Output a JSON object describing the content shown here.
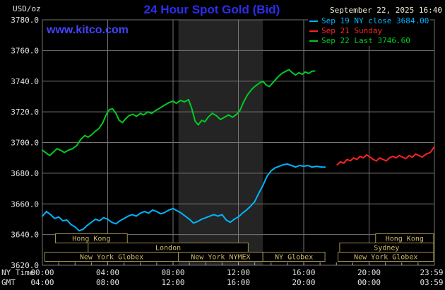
{
  "header": {
    "unit_label": "USD/oz",
    "title": "24 Hour Spot Gold (Bid)",
    "datetime": "September 22, 2025 16:40",
    "watermark": "www.kitco.com"
  },
  "legend": {
    "items": [
      {
        "label": "Sep 19 NY close 3684.00",
        "color": "#00b4ff"
      },
      {
        "label": "Sep 21 Sunday",
        "color": "#ff2222"
      },
      {
        "label": "Sep 22 Last 3746.60",
        "color": "#00cc22"
      }
    ]
  },
  "axes": {
    "y_ticks": [
      "3780.0",
      "3760.0",
      "3740.0",
      "3720.0",
      "3700.0",
      "3680.0",
      "3660.0",
      "3640.0",
      "3620.0"
    ],
    "x_ny_label": "NY Time",
    "x_gmt_label": "GMT",
    "x_ny_ticks": [
      "00:00",
      "04:00",
      "08:00",
      "12:00",
      "16:00",
      "20:00",
      "23:59"
    ],
    "x_gmt_ticks": [
      "04:00",
      "08:00",
      "12:00",
      "16:00",
      "20:00",
      "00:00",
      "03:59"
    ]
  },
  "sessions": [
    {
      "row": 0,
      "label": "Hong Kong",
      "start": 0.8,
      "end": 5.2
    },
    {
      "row": 0,
      "label": "Hong Kong",
      "start": 20.4,
      "end": 23.95
    },
    {
      "row": 1,
      "label": "London",
      "start": 2.8,
      "end": 12.6
    },
    {
      "row": 1,
      "label": "Sydney",
      "start": 18.2,
      "end": 23.95
    },
    {
      "row": 2,
      "label": "New York Globex",
      "start": 0.15,
      "end": 8.33
    },
    {
      "row": 2,
      "label": "New York NYMEX",
      "start": 8.33,
      "end": 13.5
    },
    {
      "row": 2,
      "label": "NY Globex",
      "start": 13.5,
      "end": 17.3
    },
    {
      "row": 2,
      "label": "New York Globex",
      "start": 18.1,
      "end": 23.95
    }
  ],
  "chart_data": {
    "type": "line",
    "title": "24 Hour Spot Gold (Bid)",
    "ylabel": "USD/oz",
    "ylim": [
      3620,
      3780
    ],
    "xlim_hours": [
      0,
      24
    ],
    "x_axis": "NY Time",
    "grid": true,
    "nymex_band_hours": [
      8.33,
      13.5
    ],
    "series": [
      {
        "id": "sep19",
        "name": "Sep 19 NY close 3684.00",
        "color": "#00b4ff",
        "points": [
          [
            0,
            3652
          ],
          [
            0.25,
            3655
          ],
          [
            0.5,
            3653
          ],
          [
            0.75,
            3650.5
          ],
          [
            1,
            3651.5
          ],
          [
            1.25,
            3649
          ],
          [
            1.5,
            3649.5
          ],
          [
            1.75,
            3646.5
          ],
          [
            2,
            3645
          ],
          [
            2.25,
            3642.5
          ],
          [
            2.5,
            3643.5
          ],
          [
            2.75,
            3646
          ],
          [
            3,
            3648
          ],
          [
            3.25,
            3650
          ],
          [
            3.5,
            3649
          ],
          [
            3.75,
            3651
          ],
          [
            4,
            3650
          ],
          [
            4.25,
            3648
          ],
          [
            4.5,
            3647
          ],
          [
            4.75,
            3649
          ],
          [
            5,
            3650.5
          ],
          [
            5.25,
            3652
          ],
          [
            5.5,
            3653
          ],
          [
            5.75,
            3652
          ],
          [
            6,
            3654
          ],
          [
            6.25,
            3655
          ],
          [
            6.5,
            3654
          ],
          [
            6.75,
            3656
          ],
          [
            7,
            3655
          ],
          [
            7.25,
            3653.5
          ],
          [
            7.5,
            3654.5
          ],
          [
            7.75,
            3656
          ],
          [
            8,
            3657
          ],
          [
            8.25,
            3655.5
          ],
          [
            8.5,
            3654
          ],
          [
            8.75,
            3652
          ],
          [
            9,
            3650
          ],
          [
            9.25,
            3647.5
          ],
          [
            9.5,
            3648.5
          ],
          [
            9.75,
            3650
          ],
          [
            10,
            3651
          ],
          [
            10.25,
            3652
          ],
          [
            10.5,
            3653
          ],
          [
            10.75,
            3652
          ],
          [
            11,
            3653
          ],
          [
            11.25,
            3649.5
          ],
          [
            11.5,
            3648
          ],
          [
            11.75,
            3650
          ],
          [
            12,
            3651.5
          ],
          [
            12.25,
            3654
          ],
          [
            12.5,
            3656
          ],
          [
            12.75,
            3658.5
          ],
          [
            13,
            3661.5
          ],
          [
            13.25,
            3667
          ],
          [
            13.5,
            3672
          ],
          [
            13.75,
            3678
          ],
          [
            14,
            3681.5
          ],
          [
            14.25,
            3683.5
          ],
          [
            14.5,
            3684.5
          ],
          [
            14.75,
            3685.5
          ],
          [
            15,
            3686
          ],
          [
            15.25,
            3685
          ],
          [
            15.5,
            3684
          ],
          [
            15.75,
            3685
          ],
          [
            16,
            3684.5
          ],
          [
            16.25,
            3685
          ],
          [
            16.5,
            3684
          ],
          [
            16.8,
            3684.5
          ],
          [
            17.1,
            3684
          ],
          [
            17.3,
            3684
          ]
        ]
      },
      {
        "id": "sep21",
        "name": "Sep 21 Sunday",
        "color": "#ff2222",
        "points": [
          [
            18.05,
            3685.5
          ],
          [
            18.25,
            3687.5
          ],
          [
            18.45,
            3686.5
          ],
          [
            18.65,
            3689
          ],
          [
            18.85,
            3688
          ],
          [
            19.05,
            3690
          ],
          [
            19.25,
            3689
          ],
          [
            19.45,
            3691
          ],
          [
            19.65,
            3690
          ],
          [
            19.85,
            3692
          ],
          [
            20.05,
            3690.5
          ],
          [
            20.25,
            3689
          ],
          [
            20.45,
            3688
          ],
          [
            20.65,
            3690
          ],
          [
            20.85,
            3689
          ],
          [
            21.05,
            3688
          ],
          [
            21.25,
            3690
          ],
          [
            21.45,
            3691
          ],
          [
            21.65,
            3690
          ],
          [
            21.85,
            3691.5
          ],
          [
            22.05,
            3690.5
          ],
          [
            22.25,
            3689.5
          ],
          [
            22.45,
            3691.5
          ],
          [
            22.65,
            3690.5
          ],
          [
            22.85,
            3692.5
          ],
          [
            23.05,
            3691.5
          ],
          [
            23.25,
            3690.5
          ],
          [
            23.5,
            3692.5
          ],
          [
            23.75,
            3693.5
          ],
          [
            23.98,
            3697
          ]
        ]
      },
      {
        "id": "sep22",
        "name": "Sep 22 Last 3746.60",
        "color": "#00cc22",
        "points": [
          [
            0,
            3695
          ],
          [
            0.25,
            3693
          ],
          [
            0.45,
            3691.5
          ],
          [
            0.7,
            3694
          ],
          [
            0.9,
            3696
          ],
          [
            1.1,
            3695
          ],
          [
            1.35,
            3693.5
          ],
          [
            1.6,
            3695
          ],
          [
            1.85,
            3696
          ],
          [
            2.1,
            3698
          ],
          [
            2.35,
            3702
          ],
          [
            2.6,
            3704.5
          ],
          [
            2.8,
            3703.5
          ],
          [
            3,
            3705
          ],
          [
            3.2,
            3707
          ],
          [
            3.45,
            3709
          ],
          [
            3.7,
            3713
          ],
          [
            3.9,
            3718
          ],
          [
            4.1,
            3721.5
          ],
          [
            4.3,
            3722
          ],
          [
            4.5,
            3719
          ],
          [
            4.7,
            3714.5
          ],
          [
            4.9,
            3713
          ],
          [
            5.1,
            3715.5
          ],
          [
            5.3,
            3717.5
          ],
          [
            5.55,
            3718.5
          ],
          [
            5.75,
            3717
          ],
          [
            6,
            3719
          ],
          [
            6.2,
            3718
          ],
          [
            6.45,
            3720
          ],
          [
            6.7,
            3719
          ],
          [
            6.95,
            3721
          ],
          [
            7.2,
            3722.5
          ],
          [
            7.5,
            3724.5
          ],
          [
            7.75,
            3726
          ],
          [
            8,
            3727
          ],
          [
            8.2,
            3725.5
          ],
          [
            8.45,
            3727.5
          ],
          [
            8.7,
            3726.5
          ],
          [
            8.95,
            3728
          ],
          [
            9.15,
            3722
          ],
          [
            9.35,
            3714
          ],
          [
            9.55,
            3711.5
          ],
          [
            9.75,
            3714.5
          ],
          [
            9.95,
            3713.5
          ],
          [
            10.15,
            3716.5
          ],
          [
            10.4,
            3719
          ],
          [
            10.65,
            3717.5
          ],
          [
            10.9,
            3715
          ],
          [
            11.15,
            3716.5
          ],
          [
            11.4,
            3718
          ],
          [
            11.65,
            3716.5
          ],
          [
            11.9,
            3718.5
          ],
          [
            12.1,
            3721
          ],
          [
            12.3,
            3726
          ],
          [
            12.55,
            3731
          ],
          [
            12.8,
            3734.5
          ],
          [
            13,
            3736.5
          ],
          [
            13.25,
            3738.5
          ],
          [
            13.5,
            3740
          ],
          [
            13.7,
            3737.5
          ],
          [
            13.9,
            3736.5
          ],
          [
            14.15,
            3739.5
          ],
          [
            14.4,
            3742.5
          ],
          [
            14.65,
            3745
          ],
          [
            14.9,
            3746.5
          ],
          [
            15.1,
            3747.5
          ],
          [
            15.3,
            3745.5
          ],
          [
            15.5,
            3744
          ],
          [
            15.7,
            3745.5
          ],
          [
            15.9,
            3744.5
          ],
          [
            16.1,
            3746
          ],
          [
            16.3,
            3745
          ],
          [
            16.5,
            3746.5
          ],
          [
            16.67,
            3746.6
          ]
        ]
      }
    ]
  }
}
